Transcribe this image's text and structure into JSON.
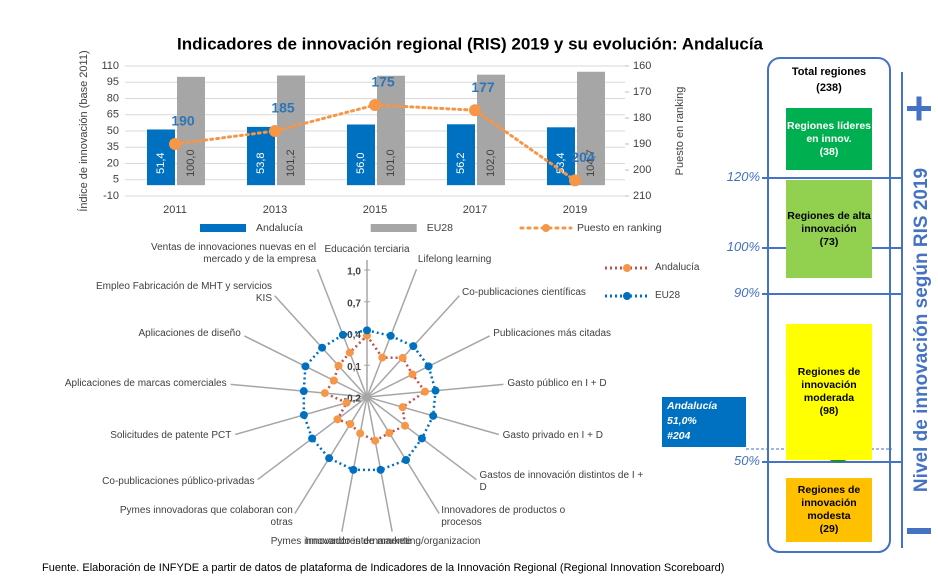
{
  "title": "Indicadores de innovación regional (RIS) 2019 y su evolución: Andalucía",
  "chart_data": [
    {
      "type": "bar",
      "ylabel": "Índice de innovación (base 2011)",
      "y2label": "Puesto en ranking",
      "categories": [
        "2011",
        "2013",
        "2015",
        "2017",
        "2019"
      ],
      "series": [
        {
          "name": "Andalucía",
          "color": "#0070c0",
          "values": [
            51.4,
            53.8,
            56.0,
            56.2,
            53.4
          ],
          "value_labels": [
            "51,4",
            "53,8",
            "56,0",
            "56,2",
            "53,4"
          ]
        },
        {
          "name": "EU28",
          "color": "#a6a6a6",
          "values": [
            100.0,
            101.2,
            101.0,
            102.0,
            104.7
          ],
          "value_labels": [
            "100,0",
            "101,2",
            "101,0",
            "102,0",
            "104,7"
          ]
        },
        {
          "name": "Puesto en ranking",
          "color": "#f79646",
          "type": "line",
          "axis": "y2",
          "values": [
            190,
            185,
            175,
            177,
            204
          ]
        }
      ],
      "ylim": [
        -10,
        110
      ],
      "yticks": [
        -10,
        5,
        20,
        35,
        50,
        65,
        80,
        95,
        110
      ],
      "y2lim": [
        210,
        160
      ],
      "y2ticks": [
        160,
        170,
        180,
        190,
        200,
        210
      ],
      "grid": true,
      "legend": "bottom"
    },
    {
      "type": "radar",
      "categories": [
        "Educación terciaria",
        "Lifelong learning",
        "Co-publicaciones científicas",
        "Publicaciones más citadas",
        "Gasto público en I + D",
        "Gasto privado en I + D",
        "Gastos de innovación distintos de I + D",
        "Innovadores de productos o procesos",
        "Innovadores de marketing/organizacion",
        "Pymes innovando internamente",
        "Pymes innovadoras que colaboran con otras",
        "Co-publicaciones público-privadas",
        "Solicitudes de patente PCT",
        "Aplicaciones de marcas comerciales",
        "Aplicaciones de diseño",
        "Empleo Fabricación de MHT y servicios KIS",
        "Ventas de innovaciones nuevas en el mercado y de la empresa"
      ],
      "series": [
        {
          "name": "Andalucía",
          "color": "#c0504d",
          "marker_color": "#f79646",
          "values": [
            0.38,
            0.2,
            0.3,
            0.28,
            0.35,
            0.15,
            0.25,
            0.2,
            0.22,
            0.15,
            0.1,
            0.15,
            0.0,
            0.2,
            0.15,
            0.2,
            0.25
          ]
        },
        {
          "name": "EU28",
          "color": "#0070c0",
          "marker_color": "#0070c0",
          "values": [
            0.43,
            0.42,
            0.45,
            0.45,
            0.45,
            0.45,
            0.45,
            0.5,
            0.5,
            0.5,
            0.48,
            0.45,
            0.42,
            0.4,
            0.45,
            0.43,
            0.43
          ]
        }
      ],
      "rlim": [
        -0.2,
        1.0
      ],
      "rticks": [
        {
          "value": 1.0,
          "label": "1,0"
        },
        {
          "value": 0.7,
          "label": "0,7"
        },
        {
          "value": 0.4,
          "label": "0,4"
        },
        {
          "value": 0.1,
          "label": "0,1"
        },
        {
          "value": -0.2,
          "label": "-0,2"
        }
      ],
      "legend": "top-right"
    }
  ],
  "panel": {
    "header": "Total regiones",
    "total": "(238)",
    "groups": [
      {
        "label": "Regiones líderes en innov.",
        "count": "(38)",
        "color": "#00b050"
      },
      {
        "label": "Regiones de alta innovación",
        "count": "(73)",
        "color": "#92d050"
      },
      {
        "label": "Regiones de innovación moderada",
        "count": "(98)",
        "color": "#ffff00"
      },
      {
        "label": "Regiones de innovación modesta",
        "count": "(29)",
        "color": "#ffc000"
      }
    ],
    "thresholds": [
      "120%",
      "100%",
      "90%",
      "50%"
    ],
    "axis_label": "Nivel de innovación según RIS 2019",
    "highlight": {
      "name": "Andalucía",
      "score": "51,0%",
      "rank": "#204"
    }
  },
  "footnote": "Fuente. Elaboración de INFYDE a partir de datos de plataforma de Indicadores de la Innovación Regional (Regional Innovation Scoreboard)"
}
